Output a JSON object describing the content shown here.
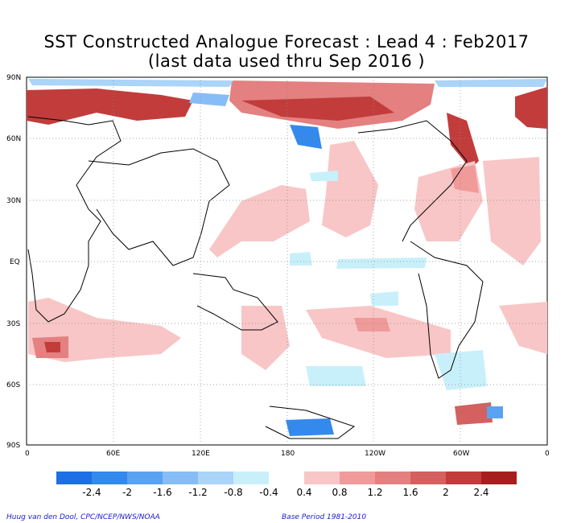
{
  "title": "SST Constructed Analogue Forecast : Lead 4 : Feb2017",
  "subtitle": "(last data used thru Sep 2016 )",
  "y_tick_labels": [
    "90N",
    "60N",
    "30N",
    "EQ",
    "30S",
    "60S",
    "90S"
  ],
  "x_tick_labels": [
    "0",
    "60E",
    "120E",
    "180",
    "120W",
    "60W",
    "0"
  ],
  "colorbar": {
    "negative_labels": [
      "-2.4",
      "-2",
      "-1.6",
      "-1.2",
      "-0.8",
      "-0.4"
    ],
    "positive_labels": [
      "0.4",
      "0.8",
      "1.2",
      "1.6",
      "2",
      "2.4"
    ],
    "negative_colors": [
      "#1e6fe6",
      "#3489ec",
      "#5aa2f2",
      "#87bdf6",
      "#aad4f8",
      "#c8f0fb"
    ],
    "positive_colors": [
      "#f8c6c6",
      "#f09a9a",
      "#e48080",
      "#d46060",
      "#c23c3c",
      "#a81e1e"
    ]
  },
  "credit_left": "Huug van den Dool, CPC/NCEP/NWS/NOAA",
  "credit_right": "Base Period 1981-2010"
}
